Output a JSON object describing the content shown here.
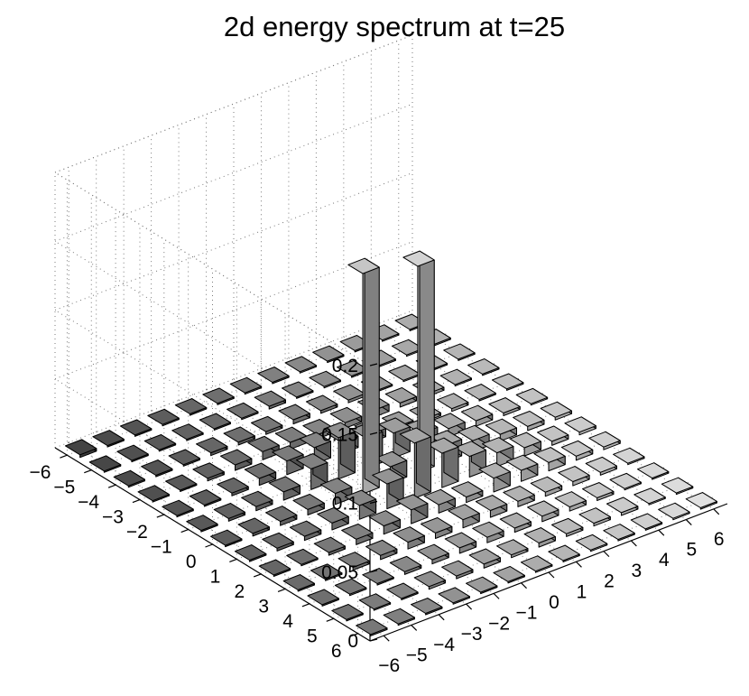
{
  "chart_data": {
    "type": "bar3",
    "title": "2d energy spectrum at t=25",
    "xlabel": "",
    "ylabel": "",
    "zlabel": "",
    "x": [
      -6,
      -5,
      -4,
      -3,
      -2,
      -1,
      0,
      1,
      2,
      3,
      4,
      5,
      6
    ],
    "y": [
      -6,
      -5,
      -4,
      -3,
      -2,
      -1,
      0,
      1,
      2,
      3,
      4,
      5,
      6
    ],
    "zlim": [
      0,
      0.2
    ],
    "zticks": [
      "0",
      "0.05",
      "0.1",
      "0.15",
      "0.2"
    ],
    "xticks": [
      "−6",
      "−5",
      "−4",
      "−3",
      "−2",
      "−1",
      "0",
      "1",
      "2",
      "3",
      "4",
      "5",
      "6"
    ],
    "yticks": [
      "−6",
      "−5",
      "−4",
      "−3",
      "−2",
      "−1",
      "0",
      "1",
      "2",
      "3",
      "4",
      "5",
      "6"
    ],
    "grid": true,
    "colormap": "gray",
    "values": [
      [
        0.002,
        0.001,
        0.001,
        0.001,
        0.001,
        0.001,
        0.001,
        0.001,
        0.001,
        0.001,
        0.001,
        0.001,
        0.001
      ],
      [
        0.001,
        0.001,
        0.001,
        0.001,
        0.001,
        0.001,
        0.002,
        0.001,
        0.001,
        0.001,
        0.001,
        0.001,
        0.001
      ],
      [
        0.001,
        0.001,
        0.001,
        0.002,
        0.002,
        0.002,
        0.003,
        0.002,
        0.002,
        0.001,
        0.001,
        0.001,
        0.001
      ],
      [
        0.001,
        0.001,
        0.002,
        0.004,
        0.006,
        0.005,
        0.003,
        0.004,
        0.005,
        0.003,
        0.002,
        0.001,
        0.001
      ],
      [
        0.001,
        0.001,
        0.002,
        0.005,
        0.01,
        0.012,
        0.008,
        0.006,
        0.004,
        0.002,
        0.002,
        0.001,
        0.001
      ],
      [
        0.001,
        0.002,
        0.003,
        0.006,
        0.015,
        0.03,
        0.022,
        0.018,
        0.01,
        0.006,
        0.004,
        0.002,
        0.001
      ],
      [
        0.001,
        0.002,
        0.003,
        0.004,
        0.008,
        0.16,
        0.012,
        0.15,
        0.012,
        0.008,
        0.005,
        0.003,
        0.002
      ],
      [
        0.001,
        0.002,
        0.003,
        0.005,
        0.01,
        0.018,
        0.04,
        0.025,
        0.015,
        0.01,
        0.006,
        0.003,
        0.002
      ],
      [
        0.001,
        0.001,
        0.002,
        0.004,
        0.006,
        0.01,
        0.006,
        0.004,
        0.01,
        0.008,
        0.006,
        0.003,
        0.002
      ],
      [
        0.001,
        0.001,
        0.002,
        0.003,
        0.005,
        0.004,
        0.006,
        0.005,
        0.004,
        0.003,
        0.003,
        0.002,
        0.001
      ],
      [
        0.001,
        0.001,
        0.001,
        0.002,
        0.003,
        0.004,
        0.004,
        0.003,
        0.004,
        0.003,
        0.002,
        0.001,
        0.001
      ],
      [
        0.001,
        0.001,
        0.001,
        0.002,
        0.002,
        0.003,
        0.002,
        0.003,
        0.002,
        0.002,
        0.002,
        0.001,
        0.001
      ],
      [
        0.001,
        0.001,
        0.001,
        0.001,
        0.001,
        0.001,
        0.001,
        0.001,
        0.001,
        0.001,
        0.001,
        0.001,
        0.001
      ]
    ]
  }
}
